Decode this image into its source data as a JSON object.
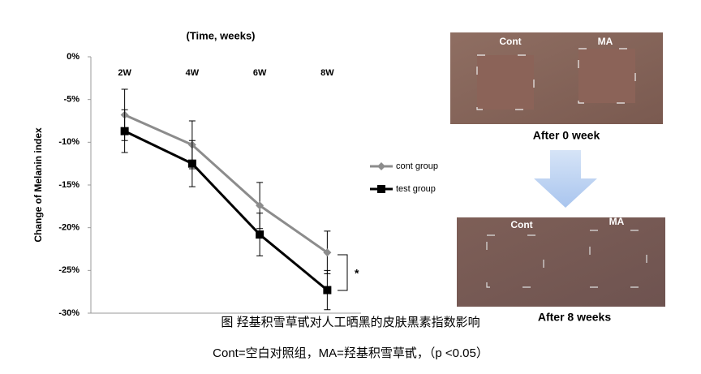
{
  "chart_data": {
    "type": "line",
    "title": "(Time, weeks)",
    "y_label": "Change of Melanin index",
    "categories": [
      "2W",
      "4W",
      "6W",
      "8W"
    ],
    "series": [
      {
        "name": "cont group",
        "color": "#8c8c8c",
        "marker": "diamond",
        "values": [
          -6.8,
          -10.3,
          -17.4,
          -22.9
        ],
        "errors": [
          3.0,
          2.8,
          2.7,
          2.5
        ]
      },
      {
        "name": "test group",
        "color": "#000000",
        "marker": "square",
        "values": [
          -8.7,
          -12.5,
          -20.8,
          -27.3
        ],
        "errors": [
          2.5,
          2.7,
          2.5,
          2.3
        ]
      }
    ],
    "ylim": [
      0,
      -30
    ],
    "yticks": [
      {
        "value": 0,
        "label": "0%"
      },
      {
        "value": -5,
        "label": "-5%"
      },
      {
        "value": -10,
        "label": "-10%"
      },
      {
        "value": -15,
        "label": "-15%"
      },
      {
        "value": -20,
        "label": "-20%"
      },
      {
        "value": -25,
        "label": "-25%"
      },
      {
        "value": -30,
        "label": "-30%"
      }
    ],
    "grid": false,
    "legend": "right",
    "annotation": "*"
  },
  "photos": {
    "before": {
      "left": "Cont",
      "right": "MA",
      "caption": "After 0 week"
    },
    "after": {
      "left": "Cont",
      "right": "MA",
      "caption": "After 8 weeks"
    }
  },
  "caption": [
    "图 羟基积雪草甙对人工晒黑的皮肤黑素指数影响",
    "Cont=空白对照组，MA=羟基积雪草甙，（p <0.05）"
  ]
}
